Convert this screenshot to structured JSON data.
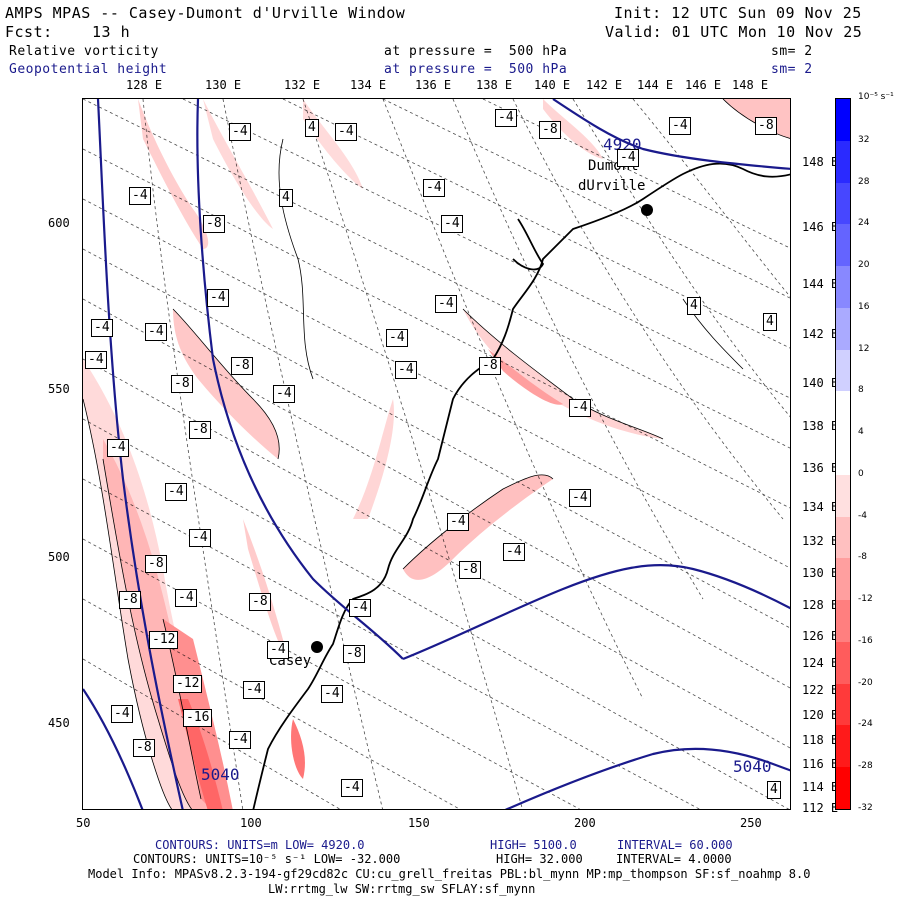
{
  "header": {
    "title": "AMPS MPAS -- Casey-Dumont d'Urville Window",
    "init": "Init: 12 UTC Sun 09 Nov 25",
    "fcst_label": "Fcst:",
    "fcst_value": "13 h",
    "valid": "Valid: 01 UTC Mon 10 Nov 25",
    "field1": "Relative vorticity",
    "field1_level": "at pressure =  500 hPa",
    "field1_sm": "sm= 2",
    "field2": "Geopotential height",
    "field2_level": "at pressure =  500 hPa",
    "field2_sm": "sm= 2"
  },
  "map": {
    "top_lon_labels": [
      "128 E",
      "130 E",
      "132 E",
      "134 E",
      "136 E",
      "138 E",
      "140 E",
      "142 E",
      "144 E",
      "146 E",
      "148 E"
    ],
    "right_lon_labels": [
      "148 E",
      "146 E",
      "144 E",
      "142 E",
      "140 E",
      "138 E",
      "136 E",
      "134 E",
      "132 E",
      "130 E",
      "128 E",
      "126 E",
      "124 E",
      "122 E",
      "120 E",
      "118 E",
      "116 E",
      "114 E",
      "112 E"
    ],
    "y_ticks": [
      "600",
      "550",
      "500",
      "450"
    ],
    "x_ticks": [
      "50",
      "100",
      "150",
      "200",
      "250"
    ],
    "stations": [
      {
        "name": "Dumont",
        "name2": "dUrville"
      },
      {
        "name": "Casey"
      }
    ],
    "height_labels": [
      "4920",
      "5040"
    ],
    "vort_labels": [
      "-4",
      "4",
      "-8",
      "-12",
      "-16"
    ]
  },
  "colorbar": {
    "units": "10⁻⁵ s⁻¹",
    "labels": [
      "32",
      "28",
      "24",
      "20",
      "16",
      "12",
      "8",
      "4",
      "0",
      "-4",
      "-8",
      "-12",
      "-16",
      "-20",
      "-24",
      "-28",
      "-32"
    ],
    "colors": [
      "#0000ff",
      "#2a2aff",
      "#4747ff",
      "#6464ff",
      "#8888ff",
      "#aaaaff",
      "#d0d0ff",
      "#ffffff",
      "#ffffff",
      "#ffe0e0",
      "#ffc0c0",
      "#ff9f9f",
      "#ff7f7f",
      "#ff5c5c",
      "#ff3a3a",
      "#ff1a1a",
      "#ff0000"
    ]
  },
  "footer": {
    "line1_a": "CONTOURS:  UNITS=m  LOW=  4920.0",
    "line1_b": "HIGH=  5100.0",
    "line1_c": "INTERVAL=  60.000",
    "line2_a": "CONTOURS:  UNITS=10⁻⁵ s⁻¹  LOW= -32.000",
    "line2_b": "HIGH=  32.000",
    "line2_c": "INTERVAL=   4.0000",
    "model_info": "Model Info: MPASv8.2.3-194-gf29cd82c CU:cu_grell_freitas PBL:bl_mynn MP:mp_thompson SF:sf_noahmp 8.0",
    "model_info2": "LW:rrtmg_lw SW:rrtmg_sw SFLAY:sf_mynn"
  }
}
